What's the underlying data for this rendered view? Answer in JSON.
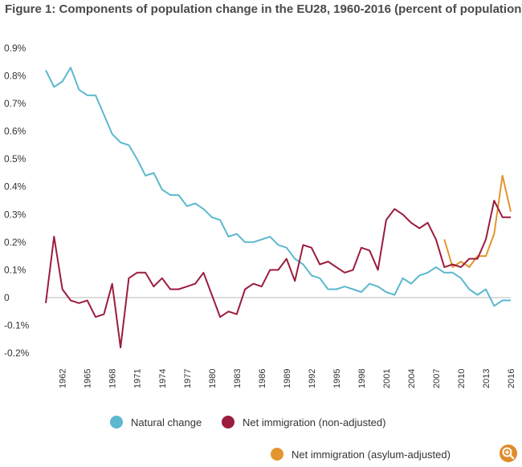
{
  "chart_data": {
    "type": "line",
    "title": "Figure 1: Components of population change in the EU28, 1960-2016 (percent of population)",
    "xlabel": "",
    "ylabel": "",
    "ylim": [
      -0.2,
      0.9
    ],
    "xlim": [
      1960,
      2016
    ],
    "grid": false,
    "y_ticks": [
      {
        "value": 0.9,
        "label": "0.9%"
      },
      {
        "value": 0.8,
        "label": "0.8%"
      },
      {
        "value": 0.7,
        "label": "0.7%"
      },
      {
        "value": 0.6,
        "label": "0.6%"
      },
      {
        "value": 0.5,
        "label": "0.5%"
      },
      {
        "value": 0.4,
        "label": "0.4%"
      },
      {
        "value": 0.3,
        "label": "0.3%"
      },
      {
        "value": 0.2,
        "label": "0.2%"
      },
      {
        "value": 0.1,
        "label": "0.1%"
      },
      {
        "value": 0.0,
        "label": "0"
      },
      {
        "value": -0.1,
        "label": "-0.1%"
      },
      {
        "value": -0.2,
        "label": "-0.2%"
      }
    ],
    "x_ticks": [
      "1962",
      "1965",
      "1968",
      "1971",
      "1974",
      "1977",
      "1980",
      "1983",
      "1986",
      "1989",
      "1992",
      "1995",
      "1998",
      "2001",
      "2004",
      "2007",
      "2010",
      "2013",
      "2016"
    ],
    "legend_position": "bottom",
    "series": [
      {
        "name": "Natural change",
        "color": "#5bb8cf",
        "x": [
          1960,
          1961,
          1962,
          1963,
          1964,
          1965,
          1966,
          1967,
          1968,
          1969,
          1970,
          1971,
          1972,
          1973,
          1974,
          1975,
          1976,
          1977,
          1978,
          1979,
          1980,
          1981,
          1982,
          1983,
          1984,
          1985,
          1986,
          1987,
          1988,
          1989,
          1990,
          1991,
          1992,
          1993,
          1994,
          1995,
          1996,
          1997,
          1998,
          1999,
          2000,
          2001,
          2002,
          2003,
          2004,
          2005,
          2006,
          2007,
          2008,
          2009,
          2010,
          2011,
          2012,
          2013,
          2014,
          2015,
          2016
        ],
        "values": [
          0.82,
          0.76,
          0.78,
          0.83,
          0.75,
          0.73,
          0.73,
          0.66,
          0.59,
          0.56,
          0.55,
          0.5,
          0.44,
          0.45,
          0.39,
          0.37,
          0.37,
          0.33,
          0.34,
          0.32,
          0.29,
          0.28,
          0.22,
          0.23,
          0.2,
          0.2,
          0.21,
          0.22,
          0.19,
          0.18,
          0.14,
          0.12,
          0.08,
          0.07,
          0.03,
          0.03,
          0.04,
          0.03,
          0.02,
          0.05,
          0.04,
          0.02,
          0.01,
          0.07,
          0.05,
          0.08,
          0.09,
          0.11,
          0.09,
          0.09,
          0.07,
          0.03,
          0.01,
          0.03,
          -0.03,
          -0.01,
          -0.01
        ]
      },
      {
        "name": "Net immigration (non-adjusted)",
        "color": "#9b1c3c",
        "x": [
          1960,
          1961,
          1962,
          1963,
          1964,
          1965,
          1966,
          1967,
          1968,
          1969,
          1970,
          1971,
          1972,
          1973,
          1974,
          1975,
          1976,
          1977,
          1978,
          1979,
          1980,
          1981,
          1982,
          1983,
          1984,
          1985,
          1986,
          1987,
          1988,
          1989,
          1990,
          1991,
          1992,
          1993,
          1994,
          1995,
          1996,
          1997,
          1998,
          1999,
          2000,
          2001,
          2002,
          2003,
          2004,
          2005,
          2006,
          2007,
          2008,
          2009,
          2010,
          2011,
          2012,
          2013,
          2014,
          2015,
          2016
        ],
        "values": [
          -0.02,
          0.22,
          0.03,
          -0.01,
          -0.02,
          -0.01,
          -0.07,
          -0.06,
          0.05,
          -0.18,
          0.07,
          0.09,
          0.09,
          0.04,
          0.07,
          0.03,
          0.03,
          0.04,
          0.05,
          0.09,
          0.01,
          -0.07,
          -0.05,
          -0.06,
          0.03,
          0.05,
          0.04,
          0.1,
          0.1,
          0.14,
          0.06,
          0.19,
          0.18,
          0.12,
          0.13,
          0.11,
          0.09,
          0.1,
          0.18,
          0.17,
          0.1,
          0.28,
          0.32,
          0.3,
          0.27,
          0.25,
          0.27,
          0.21,
          0.11,
          0.12,
          0.11,
          0.14,
          0.14,
          0.21,
          0.35,
          0.29,
          0.29
        ]
      },
      {
        "name": "Net immigration (asylum-adjusted)",
        "color": "#e3952f",
        "x": [
          2008,
          2009,
          2010,
          2011,
          2012,
          2013,
          2014,
          2015,
          2016
        ],
        "values": [
          0.21,
          0.11,
          0.13,
          0.11,
          0.15,
          0.15,
          0.23,
          0.44,
          0.31
        ]
      }
    ]
  }
}
